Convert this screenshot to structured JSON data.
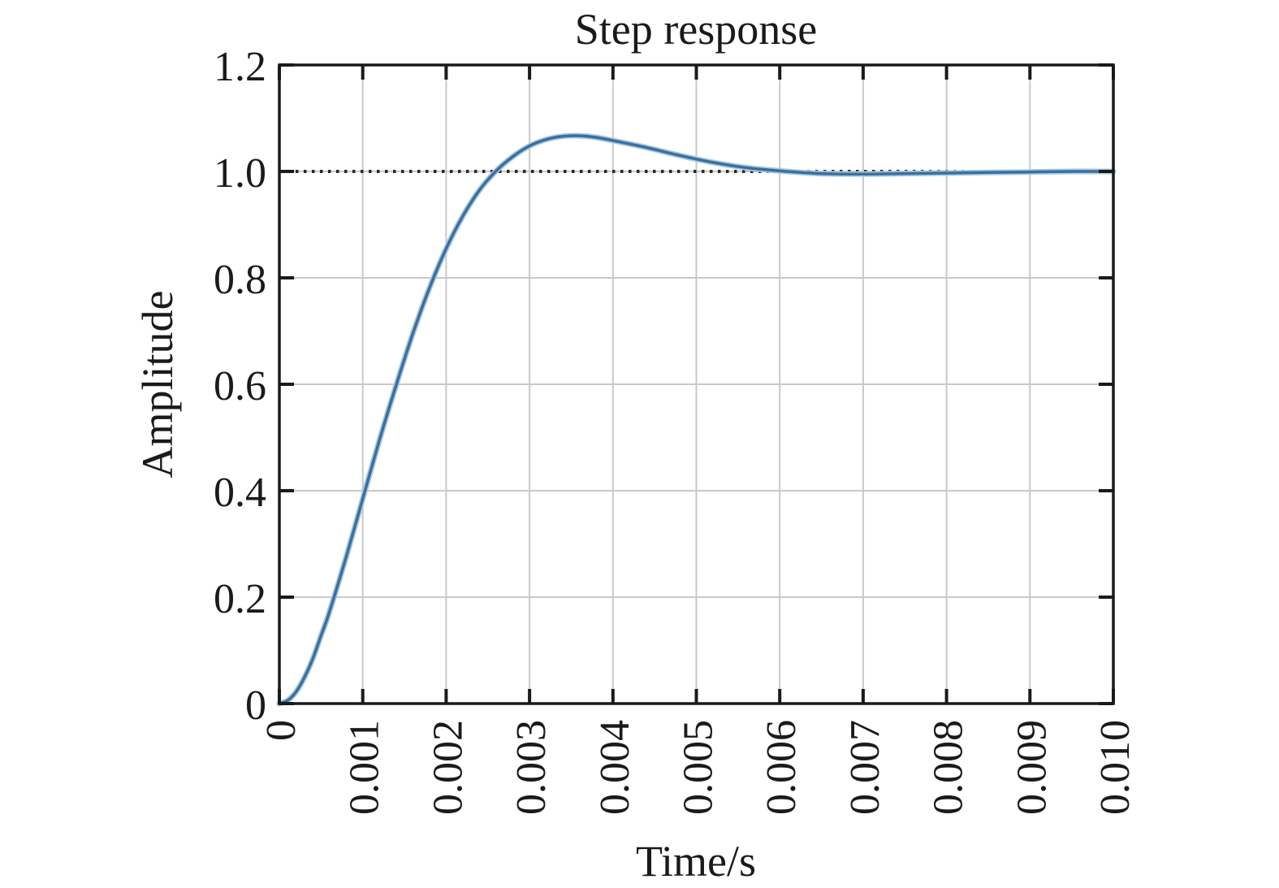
{
  "figure": {
    "background": "#ffffff"
  },
  "chart_data": {
    "type": "line",
    "title": "Step response",
    "xlabel": "Time/s",
    "ylabel": "Amplitude",
    "xlim": [
      0,
      0.01
    ],
    "ylim": [
      0,
      1.2
    ],
    "grid": true,
    "legend": "none",
    "xticks": {
      "values": [
        0,
        0.001,
        0.002,
        0.003,
        0.004,
        0.005,
        0.006,
        0.007,
        0.008,
        0.009,
        0.01
      ],
      "labels": [
        "0",
        "0.001",
        "0.002",
        "0.003",
        "0.004",
        "0.005",
        "0.006",
        "0.007",
        "0.008",
        "0.009",
        "0.010"
      ],
      "rotation_deg": 90
    },
    "yticks": {
      "values": [
        0,
        0.2,
        0.4,
        0.6,
        0.8,
        1.0,
        1.2
      ],
      "labels": [
        "0",
        "0.2",
        "0.4",
        "0.6",
        "0.8",
        "1.0",
        "1.2"
      ]
    },
    "reference_line": {
      "y": 1.0,
      "style": "dotted",
      "color": "#2b2b2b"
    },
    "series": [
      {
        "name": "step response",
        "color": "#3a6fa0",
        "halo_color": "#a9c8de",
        "points": [
          [
            0,
            0
          ],
          [
            0.0001,
            0.006
          ],
          [
            0.0002,
            0.022
          ],
          [
            0.0003,
            0.049
          ],
          [
            0.0004,
            0.084
          ],
          [
            0.0005,
            0.128
          ],
          [
            0.0006,
            0.172
          ],
          [
            0.0008,
            0.275
          ],
          [
            0.001,
            0.385
          ],
          [
            0.0012,
            0.495
          ],
          [
            0.0014,
            0.598
          ],
          [
            0.0016,
            0.695
          ],
          [
            0.0018,
            0.781
          ],
          [
            0.002,
            0.855
          ],
          [
            0.0022,
            0.916
          ],
          [
            0.0024,
            0.965
          ],
          [
            0.0026,
            1.001
          ],
          [
            0.0028,
            1.028
          ],
          [
            0.003,
            1.048
          ],
          [
            0.0032,
            1.06
          ],
          [
            0.0034,
            1.066
          ],
          [
            0.0036,
            1.067
          ],
          [
            0.0038,
            1.064
          ],
          [
            0.004,
            1.058
          ],
          [
            0.0044,
            1.045
          ],
          [
            0.0048,
            1.03
          ],
          [
            0.0052,
            1.017
          ],
          [
            0.0056,
            1.007
          ],
          [
            0.006,
            1.001
          ],
          [
            0.0065,
            0.996
          ],
          [
            0.007,
            0.995
          ],
          [
            0.0075,
            0.996
          ],
          [
            0.008,
            0.997
          ],
          [
            0.0085,
            0.998
          ],
          [
            0.009,
            0.999
          ],
          [
            0.0095,
            1.0
          ],
          [
            0.01,
            1.0
          ]
        ]
      }
    ],
    "colors": {
      "grid": "#c9c9c9",
      "axis": "#1a1a1a",
      "background": "#ffffff"
    }
  }
}
